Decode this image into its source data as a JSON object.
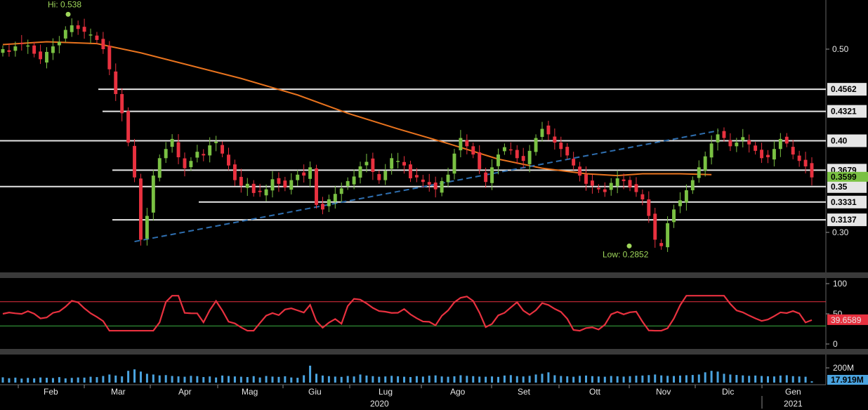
{
  "chart_data": [
    {
      "panel": "price",
      "type": "candlestick",
      "ylim": [
        0.26,
        0.545
      ],
      "y_ticks": [
        "0.50",
        "0.30"
      ],
      "high_annotation": {
        "label": "Hi: 0.538",
        "value": 0.538,
        "date": "2020-02-06"
      },
      "low_annotation": {
        "label": "Low: 0.2852",
        "value": 0.2852,
        "date": "2020-10-28"
      },
      "last_price": {
        "label": "0.3599",
        "value": 0.3599
      },
      "levels": [
        {
          "label": "0.4562",
          "value": 0.4562
        },
        {
          "label": "0.4321",
          "value": 0.4321
        },
        {
          "label": "0.40",
          "value": 0.4
        },
        {
          "label": "0.3679",
          "value": 0.3679
        },
        {
          "label": "0.35",
          "value": 0.35
        },
        {
          "label": "0.3331",
          "value": 0.3331
        },
        {
          "label": "0.3137",
          "value": 0.3137
        }
      ],
      "moving_average": {
        "color": "#e8731e",
        "points": [
          [
            0,
            0.505
          ],
          [
            7,
            0.508
          ],
          [
            15,
            0.506
          ],
          [
            22,
            0.496
          ],
          [
            30,
            0.482
          ],
          [
            38,
            0.468
          ],
          [
            47,
            0.45
          ],
          [
            55,
            0.43
          ],
          [
            63,
            0.413
          ],
          [
            71,
            0.397
          ],
          [
            79,
            0.38
          ],
          [
            86,
            0.37
          ],
          [
            93,
            0.364
          ],
          [
            98,
            0.362
          ],
          [
            102,
            0.364
          ],
          [
            108,
            0.364
          ],
          [
            113,
            0.363
          ]
        ]
      },
      "trendline": {
        "color": "#2f6fb0",
        "style": "dashed",
        "from": [
          21,
          0.29
        ],
        "to": [
          113,
          0.408
        ]
      },
      "colors": {
        "up": "#7ac143",
        "down": "#e8313f"
      },
      "closes": [
        0.5,
        0.497,
        0.503,
        0.506,
        0.504,
        0.495,
        0.489,
        0.497,
        0.503,
        0.508,
        0.521,
        0.526,
        0.522,
        0.519,
        0.516,
        0.51,
        0.5,
        0.478,
        0.451,
        0.43,
        0.398,
        0.36,
        0.292,
        0.318,
        0.362,
        0.381,
        0.391,
        0.402,
        0.382,
        0.37,
        0.378,
        0.388,
        0.384,
        0.395,
        0.399,
        0.386,
        0.373,
        0.357,
        0.351,
        0.353,
        0.343,
        0.344,
        0.347,
        0.358,
        0.353,
        0.349,
        0.357,
        0.363,
        0.362,
        0.371,
        0.33,
        0.325,
        0.336,
        0.342,
        0.348,
        0.356,
        0.361,
        0.372,
        0.377,
        0.366,
        0.357,
        0.367,
        0.381,
        0.378,
        0.373,
        0.359,
        0.36,
        0.355,
        0.352,
        0.347,
        0.356,
        0.363,
        0.386,
        0.403,
        0.394,
        0.385,
        0.369,
        0.355,
        0.371,
        0.385,
        0.393,
        0.39,
        0.381,
        0.378,
        0.389,
        0.403,
        0.413,
        0.407,
        0.398,
        0.391,
        0.384,
        0.373,
        0.362,
        0.353,
        0.351,
        0.347,
        0.344,
        0.354,
        0.359,
        0.356,
        0.349,
        0.344,
        0.336,
        0.318,
        0.292,
        0.285,
        0.31,
        0.325,
        0.335,
        0.346,
        0.357,
        0.371,
        0.383,
        0.397,
        0.407,
        0.403,
        0.394,
        0.398,
        0.404,
        0.396,
        0.389,
        0.381,
        0.382,
        0.391,
        0.402,
        0.397,
        0.385,
        0.378,
        0.372,
        0.36
      ]
    },
    {
      "panel": "RSI",
      "type": "line",
      "ylim": [
        0,
        100
      ],
      "y_ticks": [
        "100",
        "50",
        "0"
      ],
      "overbought": 70,
      "oversold": 30,
      "last_value": {
        "label": "39.6589",
        "value": 39.6589
      },
      "color": "#e8313f"
    },
    {
      "panel": "volume",
      "type": "bar",
      "y_ticks": [
        "200M"
      ],
      "last_value": {
        "label": "17.919M"
      },
      "color": "#4aa3df",
      "values_m": [
        72,
        60,
        68,
        55,
        64,
        58,
        70,
        66,
        62,
        75,
        58,
        64,
        70,
        68,
        80,
        75,
        90,
        110,
        96,
        85,
        160,
        180,
        150,
        120,
        110,
        98,
        102,
        90,
        85,
        80,
        92,
        88,
        76,
        84,
        70,
        96,
        90,
        84,
        80,
        76,
        88,
        70,
        90,
        82,
        78,
        86,
        70,
        66,
        100,
        230,
        120,
        96,
        88,
        82,
        78,
        90,
        84,
        110,
        96,
        88,
        80,
        84,
        92,
        86,
        80,
        76,
        88,
        82,
        94,
        98,
        84,
        80,
        86,
        100,
        92,
        88,
        82,
        80,
        84,
        78,
        96,
        102,
        88,
        84,
        92,
        110,
        120,
        140,
        100,
        90,
        86,
        80,
        92,
        96,
        88,
        84,
        80,
        90,
        86,
        82,
        88,
        94,
        96,
        102,
        110,
        98,
        92,
        90,
        96,
        100,
        104,
        110,
        140,
        160,
        150,
        120,
        110,
        104,
        98,
        92,
        96,
        90,
        86,
        84,
        96,
        100,
        88,
        84,
        80,
        18
      ]
    }
  ],
  "x_axis": {
    "months": [
      "Feb",
      "Mar",
      "Apr",
      "Mag",
      "Giu",
      "Lug",
      "Ago",
      "Set",
      "Ott",
      "Nov",
      "Dic",
      "Gen"
    ],
    "years": [
      "2020",
      "2021"
    ]
  }
}
